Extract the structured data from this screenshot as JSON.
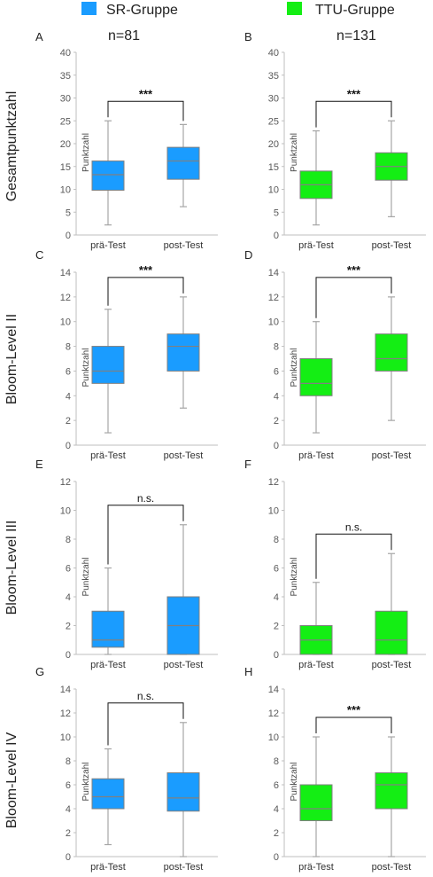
{
  "legend": {
    "left": {
      "label": "SR-Gruppe",
      "n": "n=81",
      "color": "#1a9cff"
    },
    "right": {
      "label": "TTU-Gruppe",
      "n": "n=131",
      "color": "#14ee14"
    }
  },
  "row_labels": [
    "Gesamtpunktzahl",
    "Bloom-Level II",
    "Bloom-Level III",
    "Bloom-Level IV"
  ],
  "ylabel": "Punktzahl",
  "categories": [
    "prä-Test",
    "post-Test"
  ],
  "chart_data": [
    {
      "type": "box",
      "panel": "A",
      "group": "SR-Gruppe",
      "ylim": [
        0,
        40
      ],
      "yticks": [
        0,
        5,
        10,
        15,
        20,
        25,
        30,
        35,
        40
      ],
      "significance": "***",
      "boxes": [
        {
          "min": 2.2,
          "q1": 9.8,
          "median": 13.2,
          "q3": 16.2,
          "max": 25
        },
        {
          "min": 6.2,
          "q1": 12.2,
          "median": 16.2,
          "q3": 19.2,
          "max": 24.2
        }
      ]
    },
    {
      "type": "box",
      "panel": "B",
      "group": "TTU-Gruppe",
      "ylim": [
        0,
        40
      ],
      "yticks": [
        0,
        5,
        10,
        15,
        20,
        25,
        30,
        35,
        40
      ],
      "significance": "***",
      "boxes": [
        {
          "min": 2.2,
          "q1": 8,
          "median": 11,
          "q3": 14,
          "max": 22.8
        },
        {
          "min": 4,
          "q1": 12,
          "median": 15,
          "q3": 18,
          "max": 25
        }
      ]
    },
    {
      "type": "box",
      "panel": "C",
      "group": "SR-Gruppe",
      "ylim": [
        0,
        14
      ],
      "yticks": [
        0,
        2,
        4,
        6,
        8,
        10,
        12,
        14
      ],
      "significance": "***",
      "boxes": [
        {
          "min": 1,
          "q1": 5,
          "median": 6,
          "q3": 8,
          "max": 11
        },
        {
          "min": 3,
          "q1": 6,
          "median": 8,
          "q3": 9,
          "max": 12
        }
      ]
    },
    {
      "type": "box",
      "panel": "D",
      "group": "TTU-Gruppe",
      "ylim": [
        0,
        14
      ],
      "yticks": [
        0,
        2,
        4,
        6,
        8,
        10,
        12,
        14
      ],
      "significance": "***",
      "boxes": [
        {
          "min": 1,
          "q1": 4,
          "median": 5,
          "q3": 7,
          "max": 10
        },
        {
          "min": 2,
          "q1": 6,
          "median": 7,
          "q3": 9,
          "max": 12
        }
      ]
    },
    {
      "type": "box",
      "panel": "E",
      "group": "SR-Gruppe",
      "ylim": [
        0,
        12
      ],
      "yticks": [
        0,
        2,
        4,
        6,
        8,
        10,
        12
      ],
      "significance": "n.s.",
      "boxes": [
        {
          "min": 0,
          "q1": 0.5,
          "median": 1,
          "q3": 3,
          "max": 6
        },
        {
          "min": 0,
          "q1": 0,
          "median": 2,
          "q3": 4,
          "max": 9
        }
      ]
    },
    {
      "type": "box",
      "panel": "F",
      "group": "TTU-Gruppe",
      "ylim": [
        0,
        12
      ],
      "yticks": [
        0,
        2,
        4,
        6,
        8,
        10,
        12
      ],
      "significance": "n.s.",
      "boxes": [
        {
          "min": 0,
          "q1": 0,
          "median": 1,
          "q3": 2,
          "max": 5
        },
        {
          "min": 0,
          "q1": 0,
          "median": 1,
          "q3": 3,
          "max": 7
        }
      ]
    },
    {
      "type": "box",
      "panel": "G",
      "group": "SR-Gruppe",
      "ylim": [
        0,
        14
      ],
      "yticks": [
        0,
        2,
        4,
        6,
        8,
        10,
        12,
        14
      ],
      "significance": "n.s.",
      "boxes": [
        {
          "min": 1,
          "q1": 4,
          "median": 5,
          "q3": 6.5,
          "max": 9
        },
        {
          "min": 0,
          "q1": 3.8,
          "median": 4.9,
          "q3": 7,
          "max": 11.2
        }
      ]
    },
    {
      "type": "box",
      "panel": "H",
      "group": "TTU-Gruppe",
      "ylim": [
        0,
        14
      ],
      "yticks": [
        0,
        2,
        4,
        6,
        8,
        10,
        12,
        14
      ],
      "significance": "***",
      "boxes": [
        {
          "min": 0,
          "q1": 3,
          "median": 4,
          "q3": 6,
          "max": 10
        },
        {
          "min": 0,
          "q1": 4,
          "median": 6,
          "q3": 7,
          "max": 10
        }
      ]
    }
  ]
}
